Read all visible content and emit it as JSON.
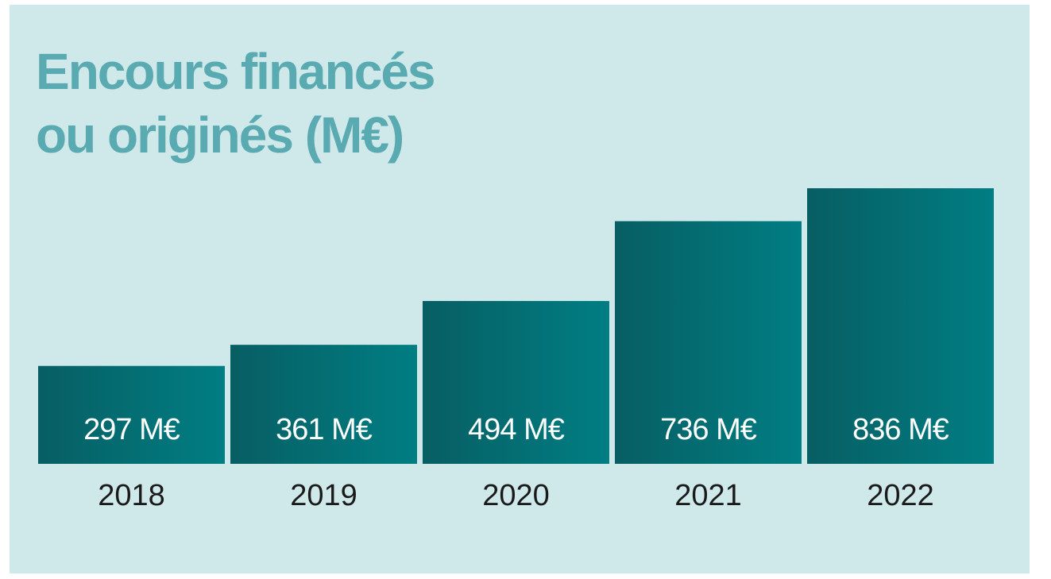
{
  "chart_data": {
    "type": "bar",
    "title_lines": [
      "Encours financés",
      "ou originés (M€)"
    ],
    "categories": [
      "2018",
      "2019",
      "2020",
      "2021",
      "2022"
    ],
    "values": [
      297,
      361,
      494,
      736,
      836
    ],
    "data_labels": [
      "297 M€",
      "361 M€",
      "494 M€",
      "736 M€",
      "836 M€"
    ],
    "unit": "M€",
    "ylim": [
      0,
      836
    ],
    "grid": false,
    "legend": "none",
    "colors": {
      "background": "#cfe8ea",
      "title": "#5aaab2",
      "bar_dark": "#075e63",
      "bar_light": "#007e83",
      "label": "#ffffff",
      "axis_text": "#1a1a1a"
    }
  }
}
